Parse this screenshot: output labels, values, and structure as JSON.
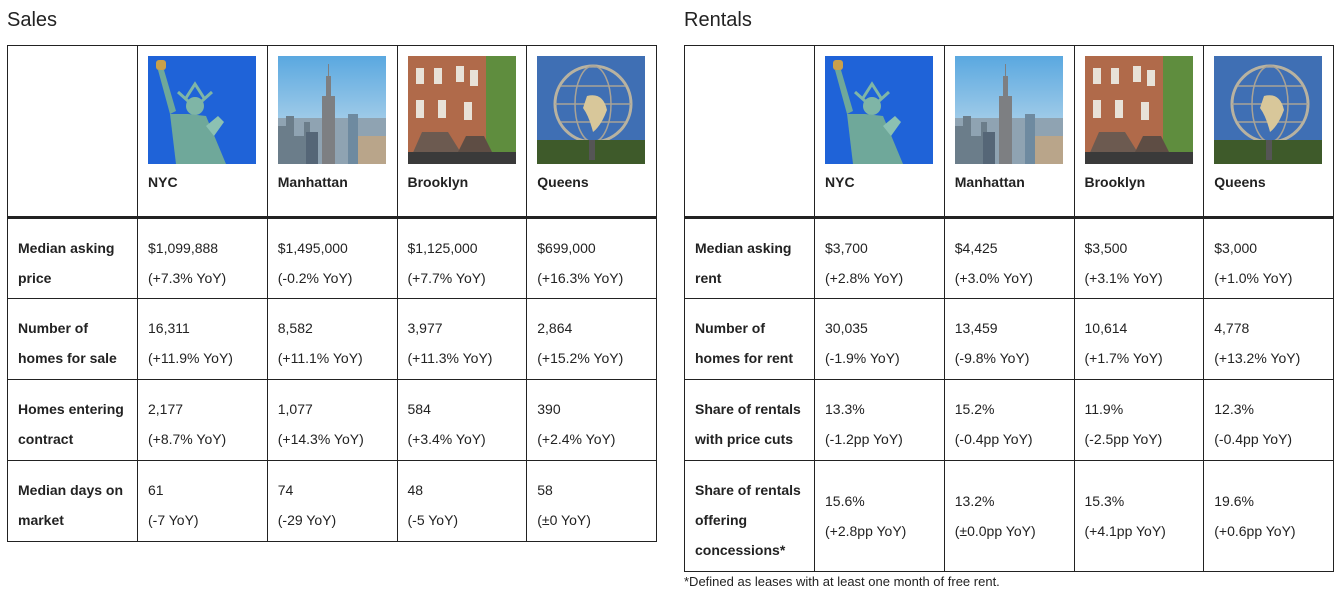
{
  "regions": [
    {
      "name": "NYC",
      "image": "statue-of-liberty"
    },
    {
      "name": "Manhattan",
      "image": "empire-state-skyline"
    },
    {
      "name": "Brooklyn",
      "image": "brownstones"
    },
    {
      "name": "Queens",
      "image": "unisphere"
    }
  ],
  "sales": {
    "title": "Sales",
    "rows": [
      {
        "label": "Median asking price",
        "values": [
          [
            "$1,099,888",
            "(+7.3% YoY)"
          ],
          [
            "$1,495,000",
            "(-0.2% YoY)"
          ],
          [
            "$1,125,000",
            "(+7.7% YoY)"
          ],
          [
            "$699,000",
            "(+16.3% YoY)"
          ]
        ]
      },
      {
        "label": "Number of homes for sale",
        "values": [
          [
            "16,311",
            "(+11.9% YoY)"
          ],
          [
            "8,582",
            "(+11.1% YoY)"
          ],
          [
            "3,977",
            "(+11.3% YoY)"
          ],
          [
            "2,864",
            "(+15.2% YoY)"
          ]
        ]
      },
      {
        "label": "Homes entering contract",
        "values": [
          [
            "2,177",
            "(+8.7% YoY)"
          ],
          [
            "1,077",
            "(+14.3% YoY)"
          ],
          [
            "584",
            "(+3.4% YoY)"
          ],
          [
            "390",
            "(+2.4% YoY)"
          ]
        ]
      },
      {
        "label": "Median days on market",
        "values": [
          [
            "61",
            "(-7 YoY)"
          ],
          [
            "74",
            "(-29 YoY)"
          ],
          [
            "48",
            "(-5 YoY)"
          ],
          [
            "58",
            "(±0 YoY)"
          ]
        ]
      }
    ]
  },
  "rentals": {
    "title": "Rentals",
    "rows": [
      {
        "label": "Median asking rent",
        "values": [
          [
            "$3,700",
            "(+2.8% YoY)"
          ],
          [
            "$4,425",
            "(+3.0% YoY)"
          ],
          [
            "$3,500",
            "(+3.1% YoY)"
          ],
          [
            "$3,000",
            "(+1.0% YoY)"
          ]
        ]
      },
      {
        "label": "Number of homes for rent",
        "values": [
          [
            "30,035",
            "(-1.9% YoY)"
          ],
          [
            "13,459",
            "(-9.8% YoY)"
          ],
          [
            "10,614",
            "(+1.7% YoY)"
          ],
          [
            "4,778",
            "(+13.2% YoY)"
          ]
        ]
      },
      {
        "label": "Share of rentals with price cuts",
        "values": [
          [
            "13.3%",
            "(-1.2pp YoY)"
          ],
          [
            "15.2%",
            "(-0.4pp YoY)"
          ],
          [
            "11.9%",
            "(-2.5pp YoY)"
          ],
          [
            "12.3%",
            "(-0.4pp YoY)"
          ]
        ]
      },
      {
        "label": "Share of rentals offering concessions*",
        "values": [
          [
            "15.6%",
            "(+2.8pp YoY)"
          ],
          [
            "13.2%",
            "(±0.0pp YoY)"
          ],
          [
            "15.3%",
            "(+4.1pp YoY)"
          ],
          [
            "19.6%",
            "(+0.6pp YoY)"
          ]
        ]
      }
    ],
    "footnote": "*Defined as leases with at least one month of free rent."
  }
}
